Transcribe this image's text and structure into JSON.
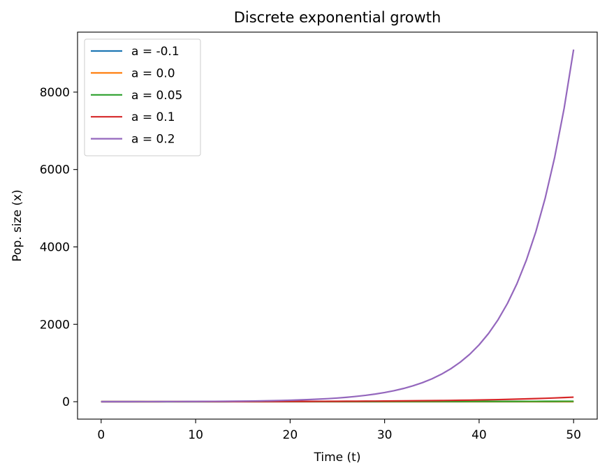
{
  "chart_data": {
    "type": "line",
    "title": "Discrete exponential growth",
    "xlabel": "Time (t)",
    "ylabel": "Pop. size (x)",
    "xlim": [
      -2.5,
      52.5
    ],
    "ylim": [
      -450,
      9550
    ],
    "xticks": [
      0,
      10,
      20,
      30,
      40,
      50
    ],
    "yticks": [
      0,
      2000,
      4000,
      6000,
      8000
    ],
    "x0": 1,
    "t_range": [
      0,
      50
    ],
    "grid": false,
    "legend_position": "top-left",
    "series": [
      {
        "name": "a = -0.1",
        "a": -0.1,
        "color": "#1f77b4"
      },
      {
        "name": "a = 0.0",
        "a": 0.0,
        "color": "#ff7f0e"
      },
      {
        "name": "a = 0.05",
        "a": 0.05,
        "color": "#2ca02c"
      },
      {
        "name": "a = 0.1",
        "a": 0.1,
        "color": "#d62728"
      },
      {
        "name": "a = 0.2",
        "a": 0.2,
        "color": "#9467bd"
      }
    ]
  }
}
